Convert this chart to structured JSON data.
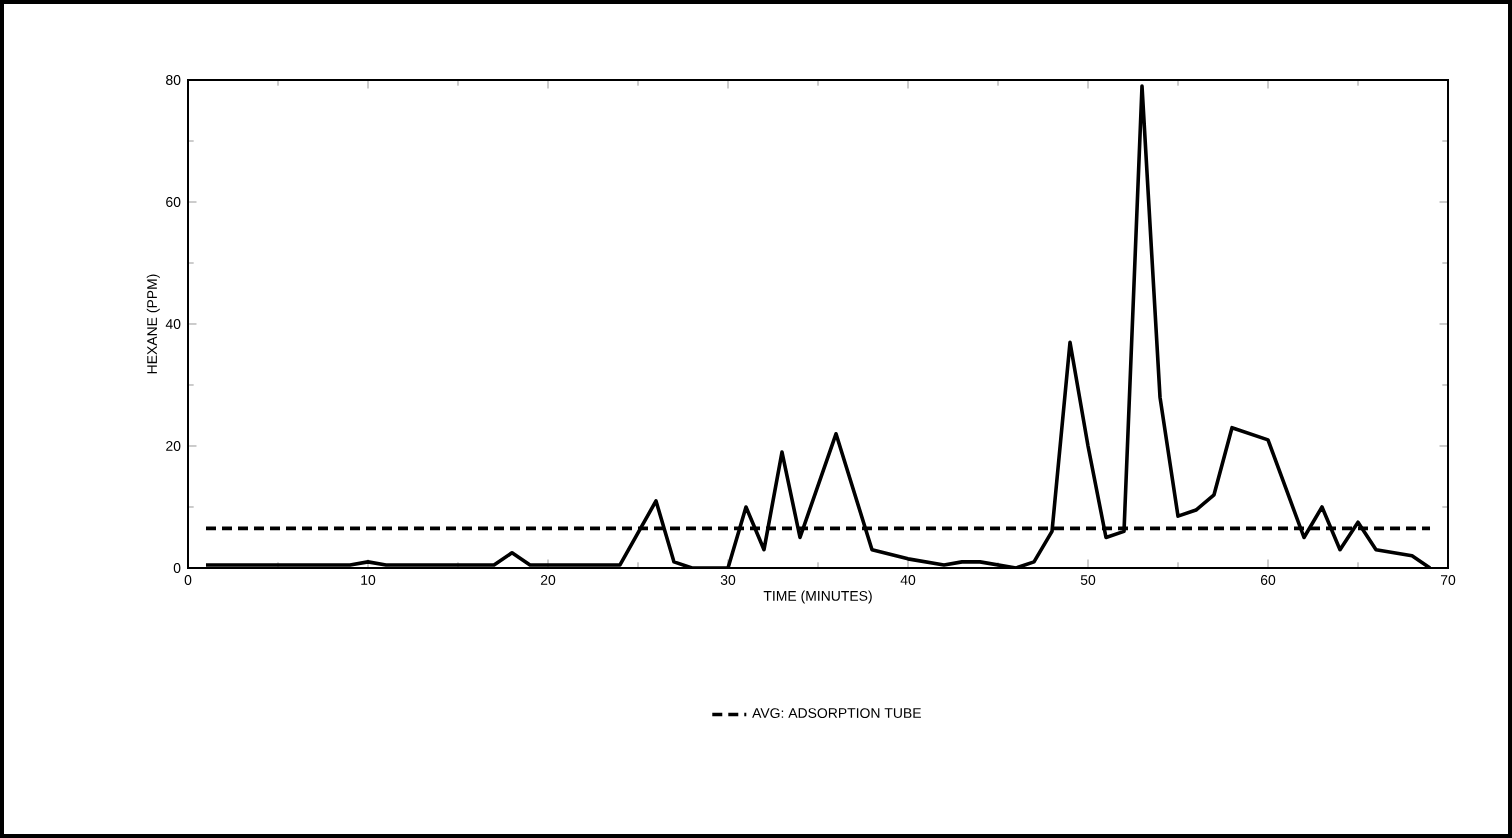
{
  "chart_data": {
    "type": "line",
    "xlabel": "TIME (MINUTES)",
    "ylabel": "HEXANE (PPM)",
    "xlim": [
      0,
      70
    ],
    "xticks": [
      0,
      10,
      20,
      30,
      40,
      50,
      60,
      70
    ],
    "ylim": [
      0,
      80
    ],
    "yticks": [
      0,
      20,
      40,
      60,
      80
    ],
    "grid": false,
    "legend": "bottom",
    "marker": "none",
    "series": [
      {
        "color": "#000000",
        "line_style": "solid",
        "x": [
          1,
          4,
          9,
          10,
          11,
          15,
          17,
          18,
          19,
          24,
          26,
          27,
          28,
          30,
          31,
          32,
          33,
          34,
          36,
          38,
          40,
          42,
          43,
          44,
          46,
          47,
          48,
          49,
          50,
          51,
          52,
          53,
          54,
          55,
          56,
          57,
          58,
          60,
          61,
          62,
          63,
          64,
          65,
          66,
          67,
          68,
          69
        ],
        "values": [
          0.5,
          0.5,
          0.5,
          1,
          0.5,
          0.5,
          0.5,
          2.5,
          0.5,
          0.5,
          11,
          1,
          0,
          0,
          10,
          3,
          19,
          5,
          22,
          3,
          1.5,
          0.5,
          1,
          1,
          0,
          1,
          6,
          37,
          20,
          5,
          6,
          79,
          28,
          8.5,
          9.5,
          12,
          23,
          21,
          13,
          5,
          10,
          3,
          7.5,
          3,
          2.5,
          2,
          0
        ]
      },
      {
        "name": "AVG: ADSORPTION TUBE",
        "color": "#000000",
        "line_style": "dashed",
        "x": [
          1,
          69
        ],
        "values": [
          6.5,
          6.5
        ]
      }
    ]
  }
}
